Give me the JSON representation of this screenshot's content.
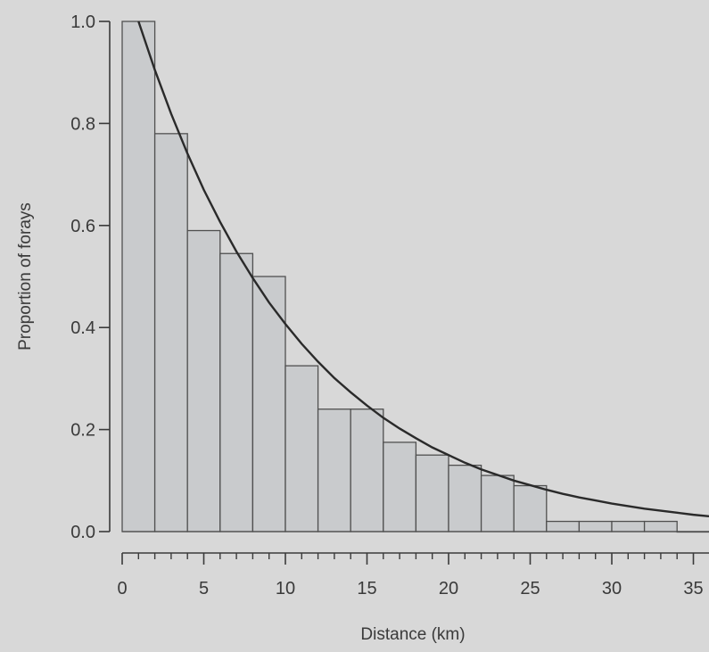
{
  "chart_data": {
    "type": "bar",
    "title": "",
    "xlabel": "Distance (km)",
    "ylabel": "Proportion of forays",
    "bin_width": 2,
    "bins": [
      {
        "x0": 0,
        "x1": 2,
        "value": 1.0
      },
      {
        "x0": 2,
        "x1": 4,
        "value": 0.78
      },
      {
        "x0": 4,
        "x1": 6,
        "value": 0.59
      },
      {
        "x0": 6,
        "x1": 8,
        "value": 0.545
      },
      {
        "x0": 8,
        "x1": 10,
        "value": 0.5
      },
      {
        "x0": 10,
        "x1": 12,
        "value": 0.325
      },
      {
        "x0": 12,
        "x1": 14,
        "value": 0.24
      },
      {
        "x0": 14,
        "x1": 16,
        "value": 0.24
      },
      {
        "x0": 16,
        "x1": 18,
        "value": 0.175
      },
      {
        "x0": 18,
        "x1": 20,
        "value": 0.15
      },
      {
        "x0": 20,
        "x1": 22,
        "value": 0.13
      },
      {
        "x0": 22,
        "x1": 24,
        "value": 0.11
      },
      {
        "x0": 24,
        "x1": 26,
        "value": 0.09
      },
      {
        "x0": 26,
        "x1": 28,
        "value": 0.02
      },
      {
        "x0": 28,
        "x1": 30,
        "value": 0.02
      },
      {
        "x0": 30,
        "x1": 32,
        "value": 0.02
      },
      {
        "x0": 32,
        "x1": 34,
        "value": 0.02
      },
      {
        "x0": 34,
        "x1": 36,
        "value": 0.0
      }
    ],
    "curve": {
      "x": [
        1,
        2,
        3,
        4,
        5,
        6,
        7,
        8,
        9,
        10,
        11,
        12,
        13,
        14,
        15,
        16,
        17,
        18,
        19,
        20,
        21,
        22,
        23,
        24,
        25,
        26,
        27,
        28,
        29,
        30,
        31,
        32,
        33,
        34,
        35,
        36
      ],
      "y": [
        1.0,
        0.905,
        0.819,
        0.741,
        0.67,
        0.607,
        0.549,
        0.497,
        0.449,
        0.407,
        0.368,
        0.333,
        0.301,
        0.273,
        0.247,
        0.223,
        0.202,
        0.183,
        0.165,
        0.15,
        0.135,
        0.122,
        0.111,
        0.1,
        0.091,
        0.082,
        0.074,
        0.067,
        0.061,
        0.055,
        0.05,
        0.045,
        0.041,
        0.037,
        0.033,
        0.03
      ]
    },
    "xlim": [
      0,
      36
    ],
    "ylim": [
      0,
      1.0
    ],
    "x_ticks": [
      0,
      5,
      10,
      15,
      20,
      25,
      30,
      35
    ],
    "x_tick_labels": [
      "0",
      "5",
      "10",
      "15",
      "20",
      "25",
      "30",
      "35"
    ],
    "x_minor_ticks": [
      1,
      2,
      3,
      4,
      6,
      7,
      8,
      9,
      11,
      12,
      13,
      14,
      16,
      17,
      18,
      19,
      21,
      22,
      23,
      24,
      26,
      27,
      28,
      29,
      31,
      32,
      33,
      34,
      36
    ],
    "y_ticks": [
      0.0,
      0.2,
      0.4,
      0.6,
      0.8,
      1.0
    ],
    "y_tick_labels": [
      "0.0",
      "0.2",
      "0.4",
      "0.6",
      "0.8",
      "1.0"
    ],
    "grid": false,
    "colors": {
      "background": "#d8d8d8",
      "bar_fill": "#c9cbcd",
      "bar_stroke": "#505050",
      "curve": "#2a2a2a",
      "axis": "#3a3a3a"
    }
  }
}
